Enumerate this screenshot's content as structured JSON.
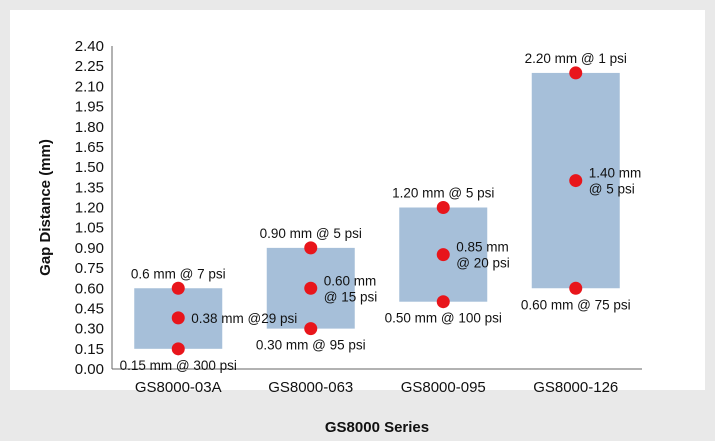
{
  "chart_data": {
    "type": "bar",
    "subtype": "floating-range-with-points",
    "xlabel": "GS8000 Series",
    "ylabel": "Gap Distance (mm)",
    "ylim": [
      0,
      2.4
    ],
    "ytick_step": 0.15,
    "ytick_labels": [
      "0.00",
      "0.15",
      "0.30",
      "0.45",
      "0.60",
      "0.75",
      "0.90",
      "1.05",
      "1.20",
      "1.35",
      "1.50",
      "1.65",
      "1.80",
      "1.95",
      "2.10",
      "2.25",
      "2.40"
    ],
    "grid": false,
    "categories": [
      "GS8000-03A",
      "GS8000-063",
      "GS8000-095",
      "GS8000-126"
    ],
    "ranges": [
      {
        "low": 0.15,
        "high": 0.6
      },
      {
        "low": 0.3,
        "high": 0.9
      },
      {
        "low": 0.5,
        "high": 1.2
      },
      {
        "low": 0.6,
        "high": 2.2
      }
    ],
    "points": [
      [
        {
          "y": 0.6,
          "label": [
            "0.6 mm @ 7 psi"
          ]
        },
        {
          "y": 0.38,
          "label": [
            "0.38 mm @29 psi"
          ]
        },
        {
          "y": 0.15,
          "label": [
            "0.15 mm @ 300 psi"
          ]
        }
      ],
      [
        {
          "y": 0.9,
          "label": [
            "0.90 mm @ 5 psi"
          ]
        },
        {
          "y": 0.6,
          "label": [
            "0.60 mm",
            "@ 15 psi"
          ]
        },
        {
          "y": 0.3,
          "label": [
            "0.30 mm @ 95 psi"
          ]
        }
      ],
      [
        {
          "y": 1.2,
          "label": [
            "1.20 mm @ 5 psi"
          ]
        },
        {
          "y": 0.85,
          "label": [
            "0.85 mm",
            "@ 20 psi"
          ]
        },
        {
          "y": 0.5,
          "label": [
            "0.50 mm @ 100 psi"
          ]
        }
      ],
      [
        {
          "y": 2.2,
          "label": [
            "2.20 mm @ 1 psi"
          ]
        },
        {
          "y": 1.4,
          "label": [
            "1.40 mm",
            "@ 5 psi"
          ]
        },
        {
          "y": 0.6,
          "label": [
            "0.60 mm @ 75 psi"
          ]
        }
      ]
    ],
    "colors": {
      "background": "#e9e9e9",
      "plot_area": "#ffffff",
      "bar": "#a6bfd9",
      "point": "#e8151b",
      "axis": "#666666"
    }
  }
}
